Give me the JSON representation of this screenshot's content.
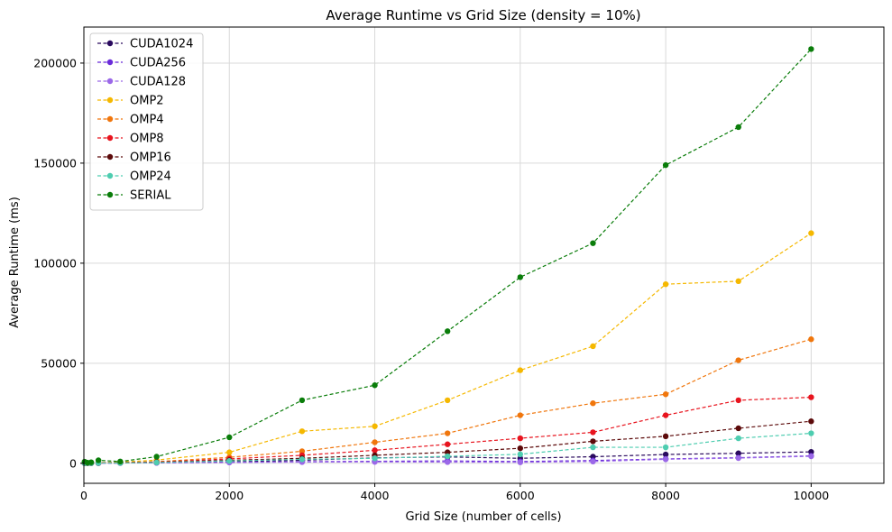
{
  "chart_data": {
    "type": "line",
    "title": "Average Runtime vs Grid Size (density = 10%)",
    "xlabel": "Grid Size (number of cells)",
    "ylabel": "Average Runtime (ms)",
    "xlim": [
      0,
      11000
    ],
    "ylim": [
      -10000,
      218000
    ],
    "xticks": [
      0,
      2000,
      4000,
      6000,
      8000,
      10000
    ],
    "xtick_labels": [
      "0",
      "2000",
      "4000",
      "6000",
      "8000",
      "10000"
    ],
    "yticks": [
      0,
      50000,
      100000,
      150000,
      200000
    ],
    "ytick_labels": [
      "0",
      "50000",
      "100000",
      "150000",
      "200000"
    ],
    "grid": true,
    "legend_position": "top-left",
    "line_style": "dashed",
    "x": [
      10,
      50,
      100,
      200,
      500,
      1000,
      2000,
      3000,
      4000,
      5000,
      6000,
      7000,
      8000,
      9000,
      10000
    ],
    "series": [
      {
        "name": "CUDA1024",
        "color": "#2a0a5e",
        "values": [
          100,
          100,
          100,
          100,
          150,
          300,
          700,
          1500,
          2700,
          3200,
          2500,
          3300,
          4400,
          5000,
          5700
        ]
      },
      {
        "name": "CUDA256",
        "color": "#6a2bd9",
        "values": [
          100,
          100,
          100,
          100,
          150,
          250,
          500,
          800,
          1000,
          1200,
          900,
          1400,
          2200,
          2800,
          3700
        ]
      },
      {
        "name": "CUDA128",
        "color": "#9b68e8",
        "values": [
          100,
          100,
          100,
          100,
          150,
          200,
          400,
          600,
          700,
          600,
          500,
          900,
          2000,
          2600,
          3500
        ]
      },
      {
        "name": "OMP2",
        "color": "#f5b800",
        "values": [
          200,
          150,
          200,
          300,
          600,
          1600,
          5500,
          16000,
          18500,
          31500,
          46500,
          58500,
          89500,
          91000,
          115000
        ]
      },
      {
        "name": "OMP4",
        "color": "#f0760c",
        "values": [
          150,
          120,
          150,
          200,
          400,
          800,
          3000,
          6000,
          10500,
          15000,
          24000,
          30000,
          34500,
          51500,
          62000
        ]
      },
      {
        "name": "OMP8",
        "color": "#e8141e",
        "values": [
          120,
          100,
          120,
          150,
          300,
          600,
          2200,
          4000,
          6500,
          9500,
          12500,
          15500,
          24000,
          31500,
          33000
        ]
      },
      {
        "name": "OMP16",
        "color": "#5c0a0a",
        "values": [
          100,
          100,
          100,
          150,
          250,
          500,
          1500,
          2500,
          4000,
          5500,
          7500,
          11000,
          13500,
          17500,
          21000
        ]
      },
      {
        "name": "OMP24",
        "color": "#4ecdb0",
        "values": [
          100,
          100,
          100,
          150,
          200,
          400,
          1200,
          2000,
          2500,
          3500,
          4500,
          8000,
          8000,
          12500,
          15000
        ]
      },
      {
        "name": "SERIAL",
        "color": "#0a7d0a",
        "values": [
          800,
          300,
          500,
          1500,
          900,
          3300,
          13000,
          31500,
          39000,
          66000,
          93000,
          110000,
          149000,
          168000,
          207000
        ]
      }
    ]
  }
}
